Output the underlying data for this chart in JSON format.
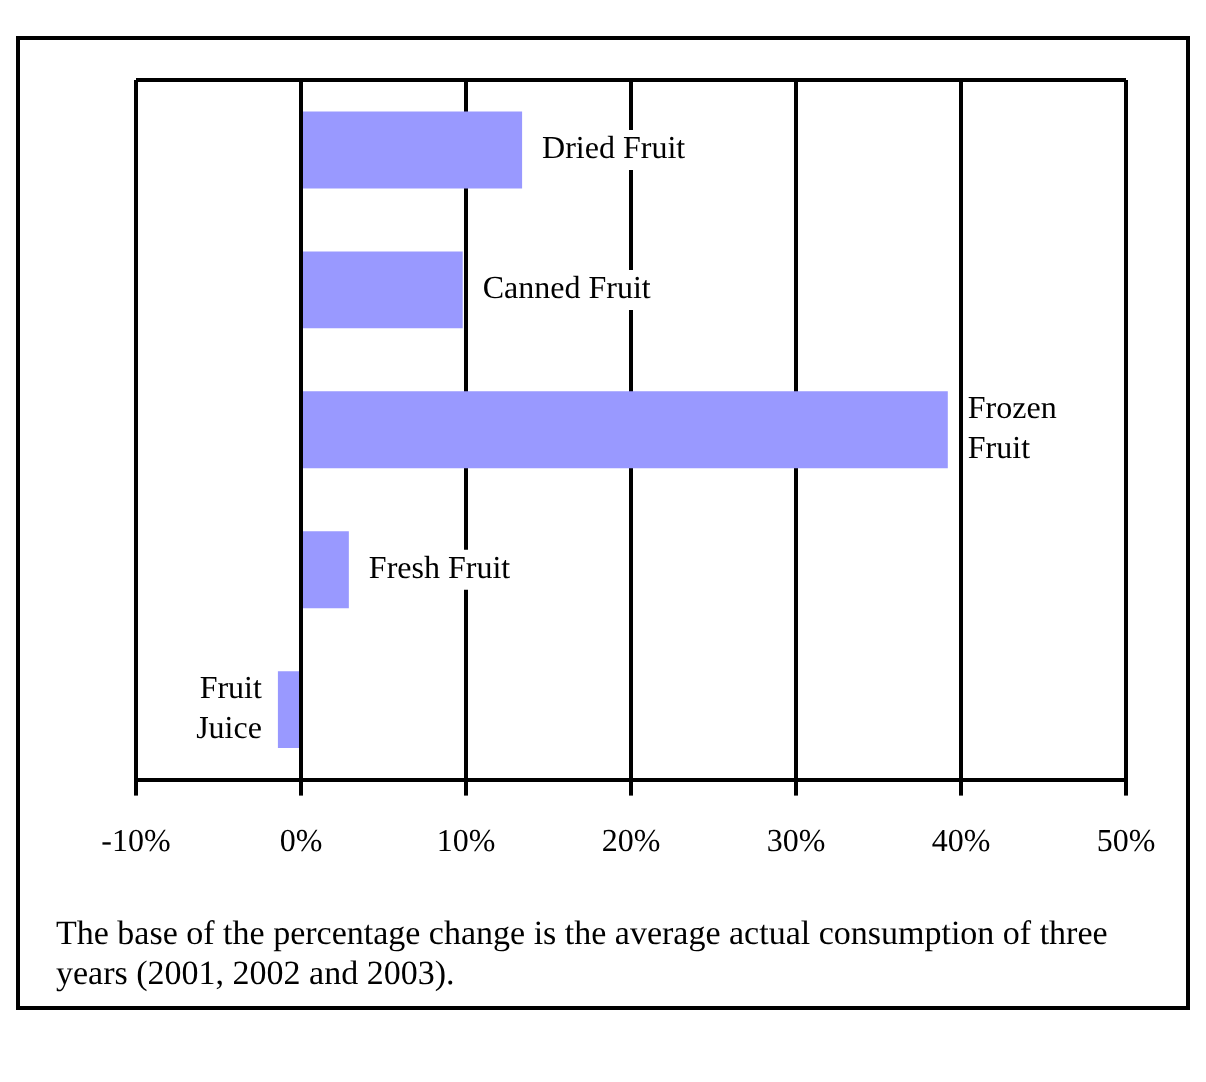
{
  "chart_data": {
    "type": "bar",
    "orientation": "horizontal",
    "categories": [
      "Dried Fruit",
      "Canned Fruit",
      "Frozen Fruit",
      "Fresh Fruit",
      "Fruit Juice"
    ],
    "values": [
      13.4,
      9.8,
      39.2,
      2.9,
      -1.4
    ],
    "color": "#9999ff",
    "xlim": [
      -10,
      50
    ],
    "xticks": [
      {
        "value": -10,
        "label": "-10%"
      },
      {
        "value": 0,
        "label": "0%"
      },
      {
        "value": 10,
        "label": "10%"
      },
      {
        "value": 20,
        "label": "20%"
      },
      {
        "value": 30,
        "label": "30%"
      },
      {
        "value": 40,
        "label": "40%"
      },
      {
        "value": 50,
        "label": "50%"
      }
    ],
    "grid": "x",
    "tick_labels": "x",
    "legend": false,
    "annotations": [
      "The base of the percentage change is the average actual consumption of three years (2001, 2002 and 2003)."
    ]
  }
}
